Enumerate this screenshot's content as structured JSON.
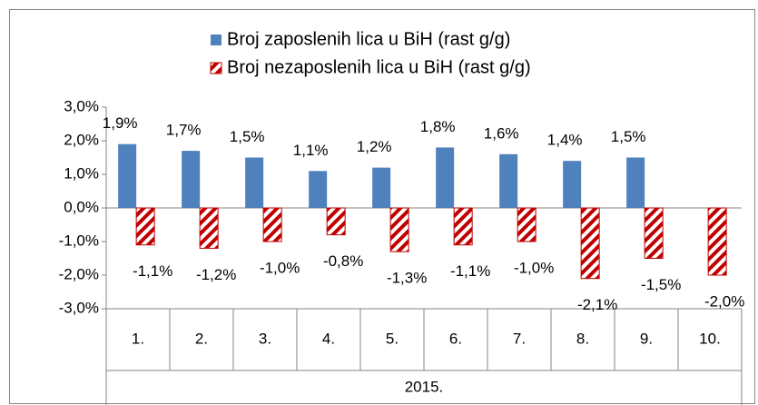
{
  "chart_data": {
    "type": "bar",
    "categories": [
      "1.",
      "2.",
      "3.",
      "4.",
      "5.",
      "6.",
      "7.",
      "8.",
      "9.",
      "10."
    ],
    "group_label": "2015.",
    "series": [
      {
        "name": "Broj zaposlenih lica u BiH (rast g/g)",
        "color": "#4f81bd",
        "hatch": false,
        "values": [
          1.9,
          1.7,
          1.5,
          1.1,
          1.2,
          1.8,
          1.6,
          1.4,
          1.5,
          null
        ],
        "value_labels": [
          "1,9%",
          "1,7%",
          "1,5%",
          "1,1%",
          "1,2%",
          "1,8%",
          "1,6%",
          "1,4%",
          "1,5%",
          null
        ]
      },
      {
        "name": "Broj nezaposlenih lica u BiH (rast g/g)",
        "color": "#c00000",
        "hatch": true,
        "values": [
          -1.1,
          -1.2,
          -1.0,
          -0.8,
          -1.3,
          -1.1,
          -1.0,
          -2.1,
          -1.5,
          -2.0
        ],
        "value_labels": [
          "-1,1%",
          "-1,2%",
          "-1,0%",
          "-0,8%",
          "-1,3%",
          "-1,1%",
          "-1,0%",
          "-2,1%",
          "-1,5%",
          "-2,0%"
        ]
      }
    ],
    "ylim": [
      -3,
      3
    ],
    "yticks": [
      {
        "value": -3,
        "label": "-3,0%"
      },
      {
        "value": -2,
        "label": "-2,0%"
      },
      {
        "value": -1,
        "label": "-1,0%"
      },
      {
        "value": 0,
        "label": "0,0%"
      },
      {
        "value": 1,
        "label": "1,0%"
      },
      {
        "value": 2,
        "label": "2,0%"
      },
      {
        "value": 3,
        "label": "3,0%"
      }
    ],
    "grid": false
  }
}
